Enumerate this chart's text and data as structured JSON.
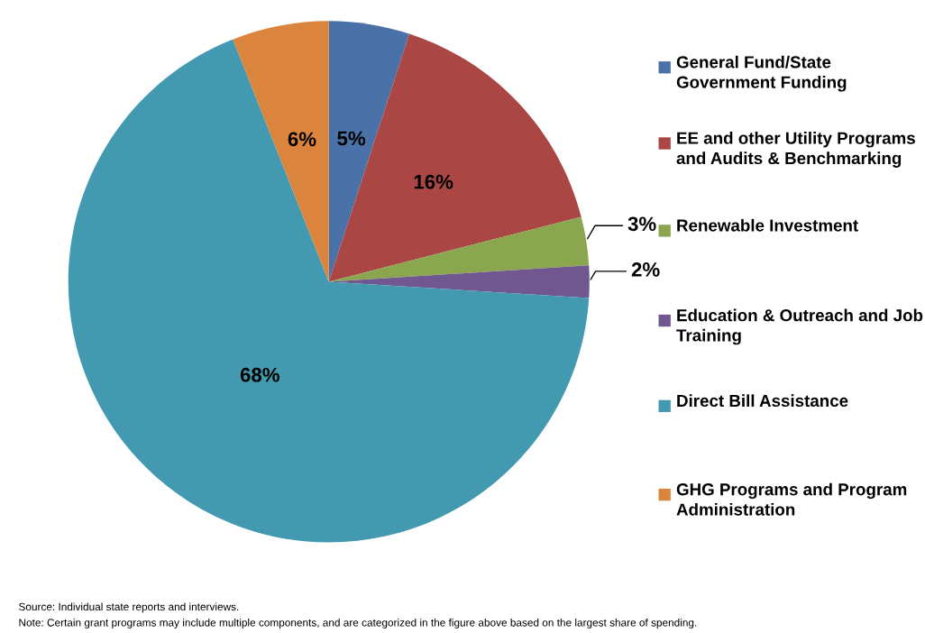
{
  "chart_data": {
    "type": "pie",
    "categories": [
      "General Fund/State Government Funding",
      "EE and other Utility Programs and Audits & Benchmarking",
      "Renewable Investment",
      "Education & Outreach and Job Training",
      "Direct Bill Assistance",
      "GHG Programs and Program Administration"
    ],
    "values": [
      5,
      16,
      3,
      2,
      68,
      6
    ],
    "colors": [
      "#4a71a8",
      "#aa4744",
      "#8aa64f",
      "#71578f",
      "#4299b0",
      "#db843d"
    ],
    "value_labels": [
      "5%",
      "16%",
      "3%",
      "2%",
      "68%",
      "6%"
    ],
    "legend": "right",
    "annotations": [
      "Source: Individual state reports and interviews.",
      "Note: Certain grant programs may include multiple components, and are categorized in the figure above based on the largest share of spending."
    ]
  }
}
